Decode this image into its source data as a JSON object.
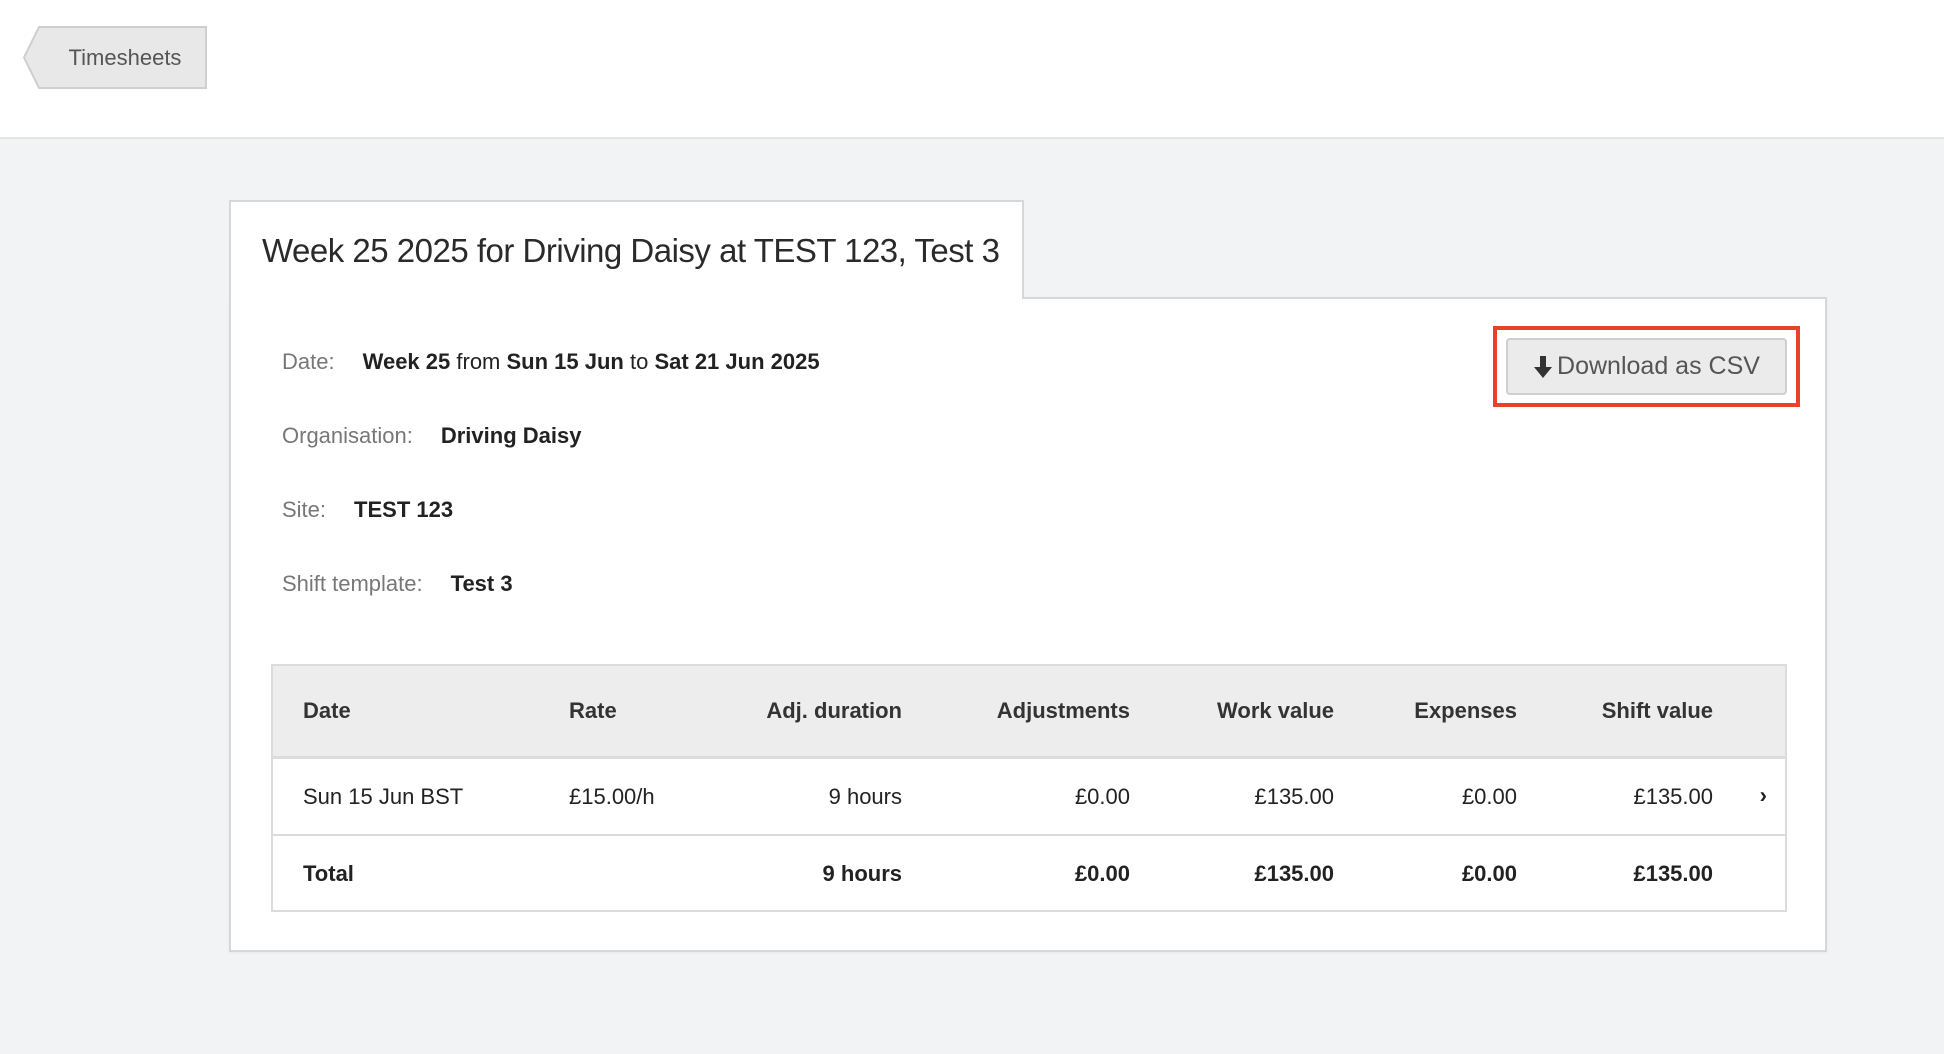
{
  "nav": {
    "back_label": "Timesheets"
  },
  "page": {
    "title": "Week 25 2025 for Driving Daisy at TEST 123, Test 3"
  },
  "info": {
    "date": {
      "label": "Date:",
      "week": "Week 25",
      "from": "from",
      "start": "Sun 15 Jun",
      "to": "to",
      "end": "Sat 21 Jun 2025"
    },
    "organisation": {
      "label": "Organisation:",
      "value": "Driving Daisy"
    },
    "site": {
      "label": "Site:",
      "value": "TEST 123"
    },
    "shift_template": {
      "label": "Shift template:",
      "value": "Test 3"
    }
  },
  "actions": {
    "download_csv_label": "Download as CSV",
    "download_icon": "arrow-down-icon",
    "highlight_color": "#e8432a"
  },
  "table": {
    "columns": [
      "Date",
      "Rate",
      "Adj. duration",
      "Adjustments",
      "Work value",
      "Expenses",
      "Shift value"
    ],
    "rows": [
      [
        "Sun 15 Jun BST",
        "£15.00/h",
        "9 hours",
        "£0.00",
        "£135.00",
        "£0.00",
        "£135.00"
      ]
    ],
    "total": [
      "Total",
      "",
      "9 hours",
      "£0.00",
      "£135.00",
      "£0.00",
      "£135.00"
    ],
    "row_icon": "chevron-right-icon"
  }
}
